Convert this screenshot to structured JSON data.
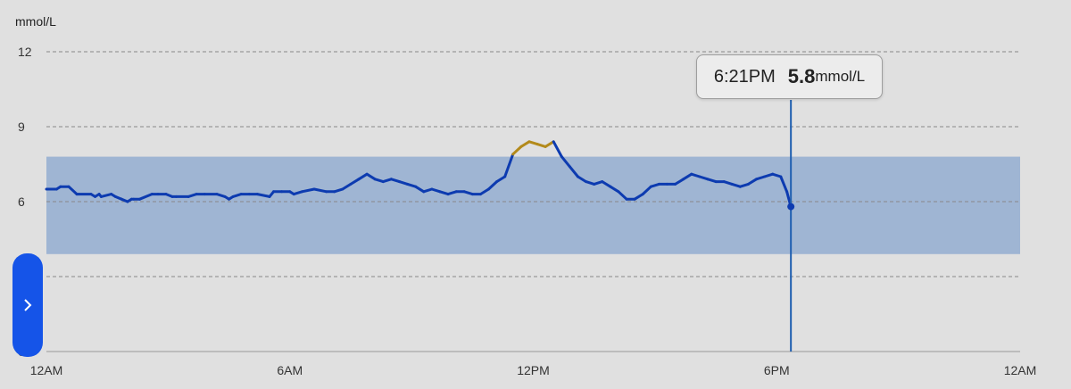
{
  "chart_data": {
    "type": "line",
    "ylabel": "mmol/L",
    "ylim": [
      0,
      12
    ],
    "yticks": [
      "0",
      "3",
      "6",
      "9",
      "12"
    ],
    "xticks": [
      "12AM",
      "6AM",
      "12PM",
      "6PM",
      "12AM"
    ],
    "xlim_hours": [
      0,
      24
    ],
    "target_range": [
      3.9,
      7.8
    ],
    "grid": true,
    "colors": {
      "in_range": "#0d3bb0",
      "high": "#b38a1b",
      "target_band": "#9fb5d3",
      "cursor": "#1f5fb0"
    },
    "x": [
      0,
      0.25,
      0.35,
      0.55,
      0.75,
      0.8,
      1.1,
      1.2,
      1.3,
      1.35,
      1.6,
      1.7,
      1.85,
      2.0,
      2.1,
      2.15,
      2.3,
      2.6,
      2.75,
      2.95,
      3.1,
      3.2,
      3.5,
      3.7,
      3.9,
      4.2,
      4.4,
      4.5,
      4.6,
      4.8,
      5.0,
      5.2,
      5.5,
      5.6,
      5.8,
      6.0,
      6.1,
      6.3,
      6.6,
      6.9,
      7.1,
      7.3,
      7.5,
      7.7,
      7.9,
      8.1,
      8.3,
      8.5,
      8.7,
      8.9,
      9.1,
      9.3,
      9.5,
      9.7,
      9.9,
      10.1,
      10.3,
      10.5,
      10.7,
      10.9,
      11.1,
      11.3,
      11.5,
      11.7,
      11.9,
      12.1,
      12.3,
      12.5,
      12.7,
      12.9,
      13.1,
      13.3,
      13.5,
      13.7,
      13.9,
      14.1,
      14.3,
      14.5,
      14.7,
      14.9,
      15.1,
      15.3,
      15.5,
      15.7,
      15.9,
      16.1,
      16.3,
      16.5,
      16.7,
      16.9,
      17.1,
      17.3,
      17.5,
      17.7,
      17.9,
      18.1,
      18.25,
      18.35
    ],
    "y": [
      6.5,
      6.5,
      6.6,
      6.6,
      6.3,
      6.3,
      6.3,
      6.2,
      6.3,
      6.2,
      6.3,
      6.2,
      6.1,
      6.0,
      6.1,
      6.1,
      6.1,
      6.3,
      6.3,
      6.3,
      6.2,
      6.2,
      6.2,
      6.3,
      6.3,
      6.3,
      6.2,
      6.1,
      6.2,
      6.3,
      6.3,
      6.3,
      6.2,
      6.4,
      6.4,
      6.4,
      6.3,
      6.4,
      6.5,
      6.4,
      6.4,
      6.5,
      6.7,
      6.9,
      7.1,
      6.9,
      6.8,
      6.9,
      6.8,
      6.7,
      6.6,
      6.4,
      6.5,
      6.4,
      6.3,
      6.4,
      6.4,
      6.3,
      6.3,
      6.5,
      6.8,
      7.0,
      7.9,
      8.2,
      8.4,
      8.3,
      8.2,
      8.4,
      7.8,
      7.4,
      7.0,
      6.8,
      6.7,
      6.8,
      6.6,
      6.4,
      6.1,
      6.1,
      6.3,
      6.6,
      6.7,
      6.7,
      6.7,
      6.9,
      7.1,
      7.0,
      6.9,
      6.8,
      6.8,
      6.7,
      6.6,
      6.7,
      6.9,
      7.0,
      7.1,
      7.0,
      6.4,
      5.8
    ],
    "cursor": {
      "time": "6:21PM",
      "value": "5.8",
      "unit": "mmol/L"
    }
  }
}
